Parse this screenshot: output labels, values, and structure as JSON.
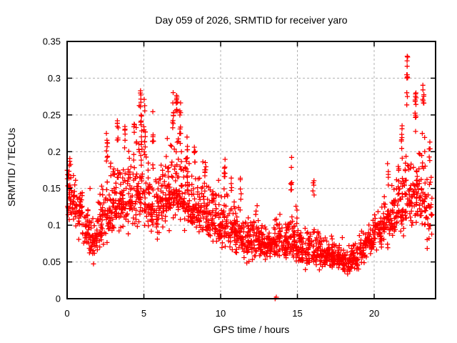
{
  "window": {
    "title": "Day 059 of 2026, SRMTID for receiver yaro"
  },
  "chart_data": {
    "type": "scatter",
    "title": "Day 059 of 2026, SRMTID for receiver yaro",
    "xlabel": "GPS time / hours",
    "ylabel": "SRMTID / TECUs",
    "xlim": [
      0,
      24
    ],
    "ylim": [
      0,
      0.35
    ],
    "x_ticks": [
      0,
      5,
      10,
      15,
      20
    ],
    "x_tick_labels": [
      "0",
      "5",
      "10",
      "15",
      "20"
    ],
    "y_ticks": [
      0,
      0.05,
      0.1,
      0.15,
      0.2,
      0.25,
      0.3,
      0.35
    ],
    "y_tick_labels": [
      "0",
      "0.05",
      "0.1",
      "0.15",
      "0.2",
      "0.25",
      "0.3",
      "0.35"
    ],
    "grid": true,
    "legend": "none",
    "marker": "plus",
    "marker_color": "#ff0000",
    "grid_color": "#b0b0b0",
    "border_color": "#000000",
    "representation_note": "Dense scatter (~2000 pts) encoded as density bins: band_bins=[hour_start,hour_end,count,y_min,y_max,y_mode]; columns=[hour,y_low,y_high,count] are narrow vertical streaks; outliers are explicit points. U-shaped diurnal pattern: high ~0.1-0.3 TECU near 0-8h and 21-24h, low ~0.03-0.1 TECU near 12-19h, peaks 0.31 at 4.8h, 0.29 at 7.1h, 0.34 at 22.1h, one point at 0 near 13.6h.",
    "band_bins": [
      [
        0.0,
        0.5,
        46,
        0.08,
        0.2,
        0.14
      ],
      [
        0.5,
        1.0,
        44,
        0.07,
        0.19,
        0.12
      ],
      [
        1.0,
        1.5,
        40,
        0.05,
        0.16,
        0.09
      ],
      [
        1.5,
        2.0,
        40,
        0.04,
        0.13,
        0.08
      ],
      [
        2.0,
        2.5,
        42,
        0.05,
        0.18,
        0.1
      ],
      [
        2.5,
        3.0,
        46,
        0.06,
        0.21,
        0.12
      ],
      [
        3.0,
        3.5,
        46,
        0.07,
        0.24,
        0.13
      ],
      [
        3.5,
        4.0,
        44,
        0.07,
        0.22,
        0.13
      ],
      [
        4.0,
        4.5,
        46,
        0.08,
        0.25,
        0.14
      ],
      [
        4.5,
        5.0,
        50,
        0.08,
        0.29,
        0.15
      ],
      [
        5.0,
        5.5,
        46,
        0.07,
        0.26,
        0.13
      ],
      [
        5.5,
        6.0,
        42,
        0.07,
        0.22,
        0.12
      ],
      [
        6.0,
        6.5,
        44,
        0.08,
        0.23,
        0.13
      ],
      [
        6.5,
        7.0,
        50,
        0.08,
        0.27,
        0.14
      ],
      [
        7.0,
        7.5,
        50,
        0.08,
        0.28,
        0.15
      ],
      [
        7.5,
        8.0,
        44,
        0.08,
        0.23,
        0.13
      ],
      [
        8.0,
        8.5,
        44,
        0.07,
        0.2,
        0.12
      ],
      [
        8.5,
        9.0,
        44,
        0.07,
        0.22,
        0.12
      ],
      [
        9.0,
        9.5,
        44,
        0.06,
        0.18,
        0.11
      ],
      [
        9.5,
        10.0,
        44,
        0.06,
        0.21,
        0.1
      ],
      [
        10.0,
        10.5,
        44,
        0.05,
        0.2,
        0.1
      ],
      [
        10.5,
        11.0,
        44,
        0.05,
        0.15,
        0.09
      ],
      [
        11.0,
        11.5,
        44,
        0.05,
        0.14,
        0.085
      ],
      [
        11.5,
        12.0,
        44,
        0.04,
        0.13,
        0.08
      ],
      [
        12.0,
        12.5,
        44,
        0.04,
        0.15,
        0.08
      ],
      [
        12.5,
        13.0,
        44,
        0.04,
        0.12,
        0.075
      ],
      [
        13.0,
        13.5,
        44,
        0.04,
        0.12,
        0.075
      ],
      [
        13.5,
        14.0,
        44,
        0.04,
        0.13,
        0.08
      ],
      [
        14.0,
        14.5,
        44,
        0.04,
        0.12,
        0.075
      ],
      [
        14.5,
        15.0,
        44,
        0.04,
        0.16,
        0.08
      ],
      [
        15.0,
        15.5,
        44,
        0.035,
        0.12,
        0.07
      ],
      [
        15.5,
        16.0,
        44,
        0.03,
        0.11,
        0.065
      ],
      [
        16.0,
        16.5,
        44,
        0.03,
        0.12,
        0.065
      ],
      [
        16.5,
        17.0,
        44,
        0.03,
        0.1,
        0.06
      ],
      [
        17.0,
        17.5,
        44,
        0.03,
        0.1,
        0.06
      ],
      [
        17.5,
        18.0,
        44,
        0.03,
        0.09,
        0.055
      ],
      [
        18.0,
        18.5,
        44,
        0.025,
        0.08,
        0.05
      ],
      [
        18.5,
        19.0,
        44,
        0.03,
        0.09,
        0.055
      ],
      [
        19.0,
        19.5,
        40,
        0.04,
        0.11,
        0.07
      ],
      [
        19.5,
        20.0,
        40,
        0.05,
        0.12,
        0.08
      ],
      [
        20.0,
        20.5,
        40,
        0.05,
        0.14,
        0.09
      ],
      [
        20.5,
        21.0,
        40,
        0.06,
        0.16,
        0.1
      ],
      [
        21.0,
        21.5,
        40,
        0.06,
        0.2,
        0.11
      ],
      [
        21.5,
        22.0,
        44,
        0.07,
        0.22,
        0.13
      ],
      [
        22.0,
        22.5,
        44,
        0.07,
        0.24,
        0.14
      ],
      [
        22.5,
        23.0,
        44,
        0.06,
        0.22,
        0.14
      ],
      [
        23.0,
        23.5,
        40,
        0.05,
        0.25,
        0.13
      ],
      [
        23.5,
        23.8,
        20,
        0.05,
        0.2,
        0.12
      ]
    ],
    "columns": [
      [
        0.15,
        0.15,
        0.2,
        8
      ],
      [
        2.6,
        0.18,
        0.235,
        8
      ],
      [
        3.3,
        0.2,
        0.26,
        8
      ],
      [
        3.75,
        0.2,
        0.25,
        6
      ],
      [
        4.35,
        0.21,
        0.25,
        5
      ],
      [
        4.8,
        0.2,
        0.31,
        14
      ],
      [
        5.05,
        0.18,
        0.285,
        10
      ],
      [
        5.6,
        0.17,
        0.26,
        8
      ],
      [
        6.9,
        0.22,
        0.285,
        10
      ],
      [
        7.15,
        0.23,
        0.29,
        10
      ],
      [
        7.35,
        0.2,
        0.27,
        8
      ],
      [
        7.8,
        0.17,
        0.23,
        8
      ],
      [
        8.3,
        0.17,
        0.225,
        6
      ],
      [
        9.0,
        0.15,
        0.22,
        6
      ],
      [
        10.25,
        0.14,
        0.2,
        8
      ],
      [
        10.7,
        0.13,
        0.17,
        4
      ],
      [
        11.3,
        0.13,
        0.17,
        5
      ],
      [
        14.6,
        0.13,
        0.21,
        8
      ],
      [
        16.05,
        0.13,
        0.185,
        5
      ],
      [
        20.9,
        0.15,
        0.19,
        5
      ],
      [
        21.8,
        0.18,
        0.24,
        8
      ],
      [
        22.15,
        0.25,
        0.34,
        12
      ],
      [
        22.7,
        0.22,
        0.3,
        12
      ],
      [
        23.2,
        0.24,
        0.3,
        8
      ],
      [
        23.6,
        0.18,
        0.23,
        5
      ]
    ],
    "outliers": [
      [
        13.55,
        0.0
      ],
      [
        13.63,
        0.002
      ]
    ]
  }
}
